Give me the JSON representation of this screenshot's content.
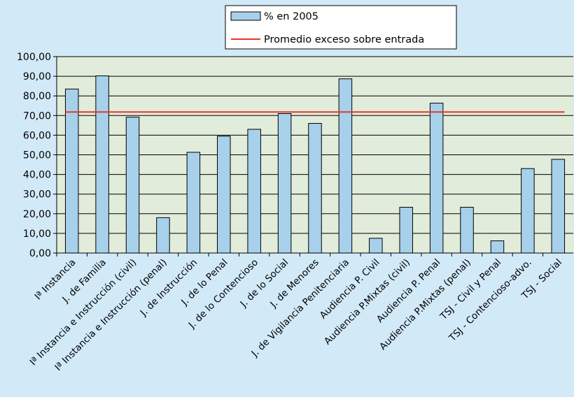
{
  "chart_data": {
    "type": "bar",
    "title": "",
    "xlabel": "",
    "ylabel": "",
    "ylim": [
      0,
      100
    ],
    "ytick_step": 10,
    "ytick_labels": [
      "0,00",
      "10,00",
      "20,00",
      "30,00",
      "40,00",
      "50,00",
      "60,00",
      "70,00",
      "80,00",
      "90,00",
      "100,00"
    ],
    "grid": true,
    "legend_position": "top-center",
    "categories": [
      "Iª Instancia",
      "J. de  Familia",
      "Iª Instancia e Instrucción (civil)",
      "Iª Instancia e Instrucción (penal)",
      "J. de Instrucción",
      "J. de lo Penal",
      "J. de lo Contencioso",
      "J. de lo Social",
      "J. de Menores",
      "J. de Vigilancia Penitenciaria",
      "Audiencia P. Civil",
      "Audiencia P.Mixtas (civil)",
      "Audiencia P. Penal",
      "Audiencia P.Mixtas (penal)",
      "TSJ - Civil y Penal",
      "TSJ - Contencioso-advo.",
      "TSJ - Social"
    ],
    "series": [
      {
        "name": "% en 2005",
        "kind": "bar",
        "color": "#a7d0ea",
        "values": [
          83.5,
          90.2,
          69.2,
          18.0,
          51.3,
          59.5,
          63.0,
          71.0,
          66.0,
          88.7,
          7.5,
          23.3,
          76.3,
          23.3,
          6.2,
          43.0,
          47.7
        ]
      },
      {
        "name": "Promedio exceso sobre entrada",
        "kind": "line",
        "color": "#e8372b",
        "value": 71.8
      }
    ],
    "colors": {
      "background": "#d2e9f7",
      "plot_area": "#e2ecdb",
      "gridline": "#000000"
    }
  }
}
